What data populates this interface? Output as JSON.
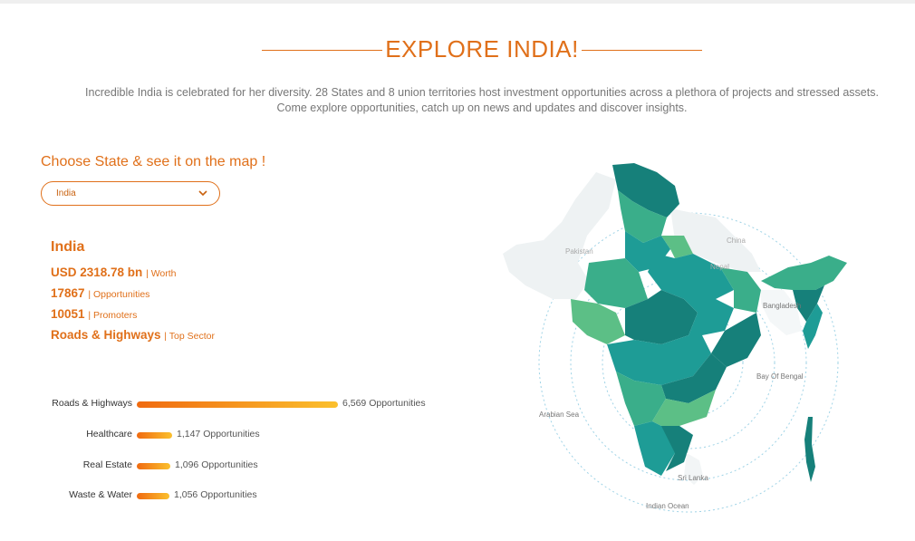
{
  "header": {
    "title": "EXPLORE INDIA!",
    "intro_line1": "Incredible India is celebrated for her diversity. 28 States and 8 union territories host investment opportunities across a plethora of projects and stressed assets.",
    "intro_line2": "Come explore opportunities, catch up on news and updates and discover insights."
  },
  "state_picker": {
    "prompt": "Choose State & see it on the map !",
    "selected": "India"
  },
  "summary": {
    "name": "India",
    "worth_value": "USD 2318.78 bn",
    "worth_label": "| Worth",
    "opportunities_value": "17867",
    "opportunities_label": "| Opportunities",
    "promoters_value": "10051",
    "promoters_label": "| Promoters",
    "sector_value": "Roads & Highways",
    "sector_label": "| Top Sector"
  },
  "sectors": [
    {
      "name": "Roads & Highways",
      "count": 6569,
      "count_label": "6,569 Opportunities"
    },
    {
      "name": "Healthcare",
      "count": 1147,
      "count_label": "1,147 Opportunities"
    },
    {
      "name": "Real Estate",
      "count": 1096,
      "count_label": "1,096 Opportunities"
    },
    {
      "name": "Waste & Water",
      "count": 1056,
      "count_label": "1,056 Opportunities"
    }
  ],
  "map": {
    "labels": {
      "pakistan": "Pakistan",
      "china": "China",
      "nepal": "Nepal",
      "bangladesh": "Bangladesh",
      "bay_of_bengal": "Bay Of Bengal",
      "arabian_sea": "Arabian Sea",
      "sri_lanka": "Sri Lanka",
      "indian_ocean": "Indian Ocean"
    },
    "colors": {
      "dark_teal": "#16807a",
      "teal": "#1e9c96",
      "green": "#3aae8a",
      "light_green": "#5cbf86",
      "neighbor": "#eef2f3"
    }
  },
  "colors": {
    "accent": "#e0701a",
    "bar_start": "#f06a10",
    "bar_end": "#fbc02d"
  }
}
